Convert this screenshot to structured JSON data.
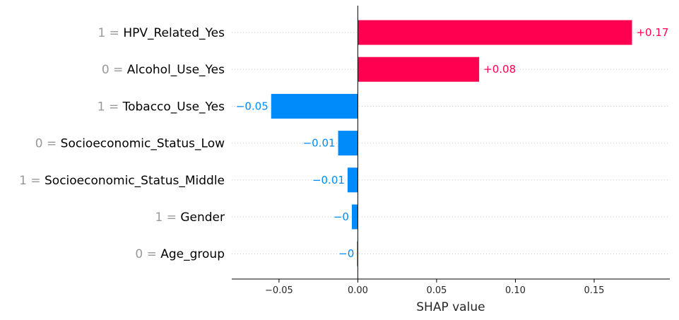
{
  "chart_data": {
    "type": "bar",
    "orientation": "horizontal",
    "xlabel": "SHAP value",
    "xlim": [
      -0.08,
      0.198
    ],
    "xticks": [
      -0.05,
      0.0,
      0.05,
      0.1,
      0.15
    ],
    "xtick_labels": [
      "−0.05",
      "0.00",
      "0.05",
      "0.10",
      "0.15"
    ],
    "grid": "dotted horizontal row guides",
    "features": [
      {
        "value_text": "1",
        "name": "HPV_Related_Yes",
        "shap": 0.174,
        "label": "+0.17"
      },
      {
        "value_text": "0",
        "name": "Alcohol_Use_Yes",
        "shap": 0.077,
        "label": "+0.08"
      },
      {
        "value_text": "1",
        "name": "Tobacco_Use_Yes",
        "shap": -0.055,
        "label": "−0.05"
      },
      {
        "value_text": "0",
        "name": "Socioeconomic_Status_Low",
        "shap": -0.0125,
        "label": "−0.01"
      },
      {
        "value_text": "1",
        "name": "Socioeconomic_Status_Middle",
        "shap": -0.0065,
        "label": "−0.01"
      },
      {
        "value_text": "1",
        "name": "Gender",
        "shap": -0.0038,
        "label": "−0"
      },
      {
        "value_text": "0",
        "name": "Age_group",
        "shap": -0.0005,
        "label": "−0"
      }
    ],
    "colors": {
      "positive": "#ff0051",
      "negative": "#008bfb",
      "zero_line": "#000000",
      "axis": "#000000",
      "grid": "#cccccc"
    }
  }
}
